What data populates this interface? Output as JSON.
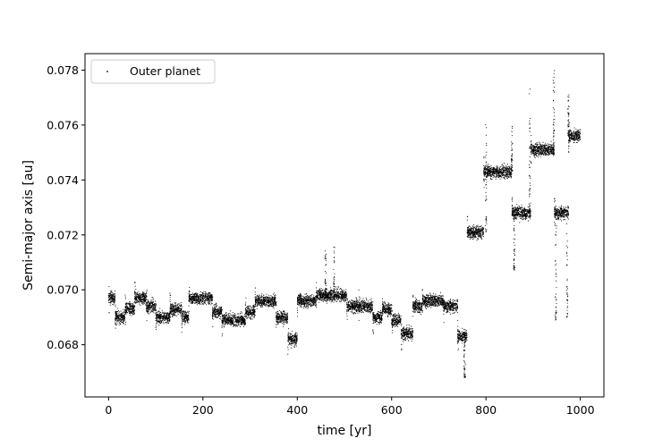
{
  "chart_data": {
    "type": "scatter",
    "title": "",
    "xlabel": "time [yr]",
    "ylabel": "Semi-major axis [au]",
    "xlim": [
      -50,
      1050
    ],
    "ylim": [
      0.0661,
      0.0786
    ],
    "xticks": [
      0,
      200,
      400,
      600,
      800,
      1000
    ],
    "yticks": [
      0.068,
      0.07,
      0.072,
      0.074,
      0.076,
      0.078
    ],
    "ytick_labels": [
      "0.068",
      "0.070",
      "0.072",
      "0.074",
      "0.076",
      "0.078"
    ],
    "grid": false,
    "legend_position": "upper-left",
    "marker_color": "#000000",
    "series": [
      {
        "name": "Outer planet",
        "segments": [
          {
            "x": [
              0,
              14
            ],
            "y": 0.0697,
            "spread": 0.0002
          },
          {
            "x": [
              14,
              35
            ],
            "y": 0.069,
            "spread": 0.0002
          },
          {
            "x": [
              35,
              55
            ],
            "y": 0.0693,
            "spread": 0.0002
          },
          {
            "x": [
              55,
              80
            ],
            "y": 0.0697,
            "spread": 0.0002
          },
          {
            "x": [
              80,
              100
            ],
            "y": 0.0694,
            "spread": 0.0002
          },
          {
            "x": [
              100,
              130
            ],
            "y": 0.069,
            "spread": 0.0002
          },
          {
            "x": [
              130,
              155
            ],
            "y": 0.0693,
            "spread": 0.0002
          },
          {
            "x": [
              155,
              170
            ],
            "y": 0.069,
            "spread": 0.0002
          },
          {
            "x": [
              170,
              220
            ],
            "y": 0.0697,
            "spread": 0.0002
          },
          {
            "x": [
              220,
              240
            ],
            "y": 0.0692,
            "spread": 0.0002
          },
          {
            "x": [
              240,
              290
            ],
            "y": 0.0689,
            "spread": 0.0002
          },
          {
            "x": [
              290,
              310
            ],
            "y": 0.0692,
            "spread": 0.0002
          },
          {
            "x": [
              310,
              355
            ],
            "y": 0.0696,
            "spread": 0.0002
          },
          {
            "x": [
              355,
              380
            ],
            "y": 0.069,
            "spread": 0.0002
          },
          {
            "x": [
              380,
              400
            ],
            "y": 0.0682,
            "spread": 0.0002
          },
          {
            "x": [
              400,
              440
            ],
            "y": 0.0696,
            "spread": 0.0002
          },
          {
            "x": [
              440,
              505
            ],
            "y": 0.0698,
            "spread": 0.0002
          },
          {
            "x": [
              505,
              530
            ],
            "y": 0.0694,
            "spread": 0.0002
          },
          {
            "x": [
              530,
              560
            ],
            "y": 0.0694,
            "spread": 0.0002
          },
          {
            "x": [
              560,
              580
            ],
            "y": 0.069,
            "spread": 0.0002
          },
          {
            "x": [
              580,
              600
            ],
            "y": 0.0693,
            "spread": 0.0002
          },
          {
            "x": [
              600,
              620
            ],
            "y": 0.0689,
            "spread": 0.0002
          },
          {
            "x": [
              620,
              645
            ],
            "y": 0.0684,
            "spread": 0.0002
          },
          {
            "x": [
              645,
              665
            ],
            "y": 0.0694,
            "spread": 0.0002
          },
          {
            "x": [
              665,
              710
            ],
            "y": 0.0696,
            "spread": 0.0002
          },
          {
            "x": [
              710,
              740
            ],
            "y": 0.0694,
            "spread": 0.0002
          },
          {
            "x": [
              740,
              760
            ],
            "y": 0.0683,
            "spread": 0.0002
          },
          {
            "x": [
              760,
              795
            ],
            "y": 0.0721,
            "spread": 0.0002
          },
          {
            "x": [
              795,
              855
            ],
            "y": 0.0743,
            "spread": 0.0002
          },
          {
            "x": [
              855,
              895
            ],
            "y": 0.0728,
            "spread": 0.0002
          },
          {
            "x": [
              895,
              945
            ],
            "y": 0.0751,
            "spread": 0.0002
          },
          {
            "x": [
              945,
              975
            ],
            "y": 0.0728,
            "spread": 0.0002
          },
          {
            "x": [
              975,
              1000
            ],
            "y": 0.0756,
            "spread": 0.0002
          }
        ],
        "spikes": [
          {
            "x": 460,
            "y": [
              0.0697,
              0.0716
            ]
          },
          {
            "x": 478,
            "y": [
              0.0697,
              0.0716
            ]
          },
          {
            "x": 755,
            "y": [
              0.0668,
              0.0683
            ]
          },
          {
            "x": 800,
            "y": [
              0.0721,
              0.0761
            ]
          },
          {
            "x": 855,
            "y": [
              0.0743,
              0.076
            ]
          },
          {
            "x": 860,
            "y": [
              0.0707,
              0.0728
            ]
          },
          {
            "x": 893,
            "y": [
              0.0728,
              0.0774
            ]
          },
          {
            "x": 944,
            "y": [
              0.0751,
              0.078
            ]
          },
          {
            "x": 948,
            "y": [
              0.0689,
              0.0728
            ]
          },
          {
            "x": 972,
            "y": [
              0.069,
              0.0728
            ]
          },
          {
            "x": 975,
            "y": [
              0.0756,
              0.0771
            ]
          }
        ]
      }
    ]
  }
}
